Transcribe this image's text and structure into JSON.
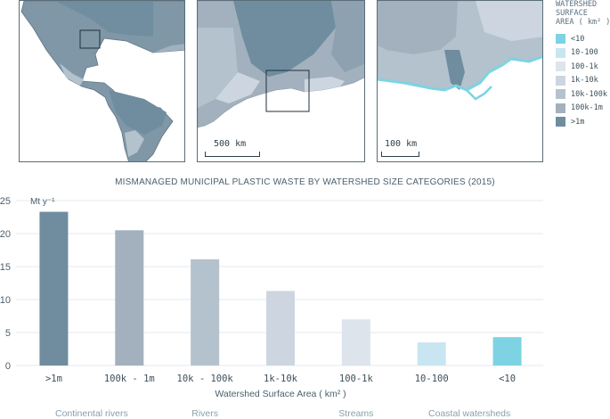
{
  "maps": {
    "panel1": {
      "scale_label": ""
    },
    "panel2": {
      "scale_label": "500 km"
    },
    "panel3": {
      "scale_label": "100 km"
    }
  },
  "legend": {
    "title": "WATERSHED\nSURFACE\nAREA ( km² )",
    "items": [
      {
        "label": "<10",
        "color": "#7dd3e3"
      },
      {
        "label": "10-100",
        "color": "#c7e6f1"
      },
      {
        "label": "100-1k",
        "color": "#dde4ec"
      },
      {
        "label": "1k-10k",
        "color": "#cdd6e0"
      },
      {
        "label": "10k-100k",
        "color": "#b4c2cd"
      },
      {
        "label": "100k-1m",
        "color": "#a2b1bd"
      },
      {
        "label": ">1m",
        "color": "#6f8d9f"
      }
    ]
  },
  "chart_data": {
    "type": "bar",
    "title": "MISMANAGED MUNICIPAL PLASTIC WASTE BY WATERSHED SIZE CATEGORIES (2015)",
    "ylabel": "Mt y⁻¹",
    "xlabel": "Watershed Surface Area ( km² )",
    "ylim": [
      0,
      25
    ],
    "yticks": [
      0,
      5,
      10,
      15,
      20,
      25
    ],
    "categories": [
      ">1m",
      "100k - 1m",
      "10k - 100k",
      "1k-10k",
      "100-1k",
      "10-100",
      "<10"
    ],
    "values": [
      23.3,
      20.5,
      16.1,
      11.3,
      7.0,
      3.5,
      4.3
    ],
    "colors": [
      "#6f8d9f",
      "#a2b1bd",
      "#b4c2cd",
      "#cdd6e0",
      "#dde4ec",
      "#c7e6f1",
      "#7dd3e3"
    ],
    "grid": true,
    "groups": [
      {
        "label": "Continental rivers"
      },
      {
        "label": "Rivers"
      },
      {
        "label": "Streams"
      },
      {
        "label": "Coastal watersheds"
      }
    ]
  }
}
